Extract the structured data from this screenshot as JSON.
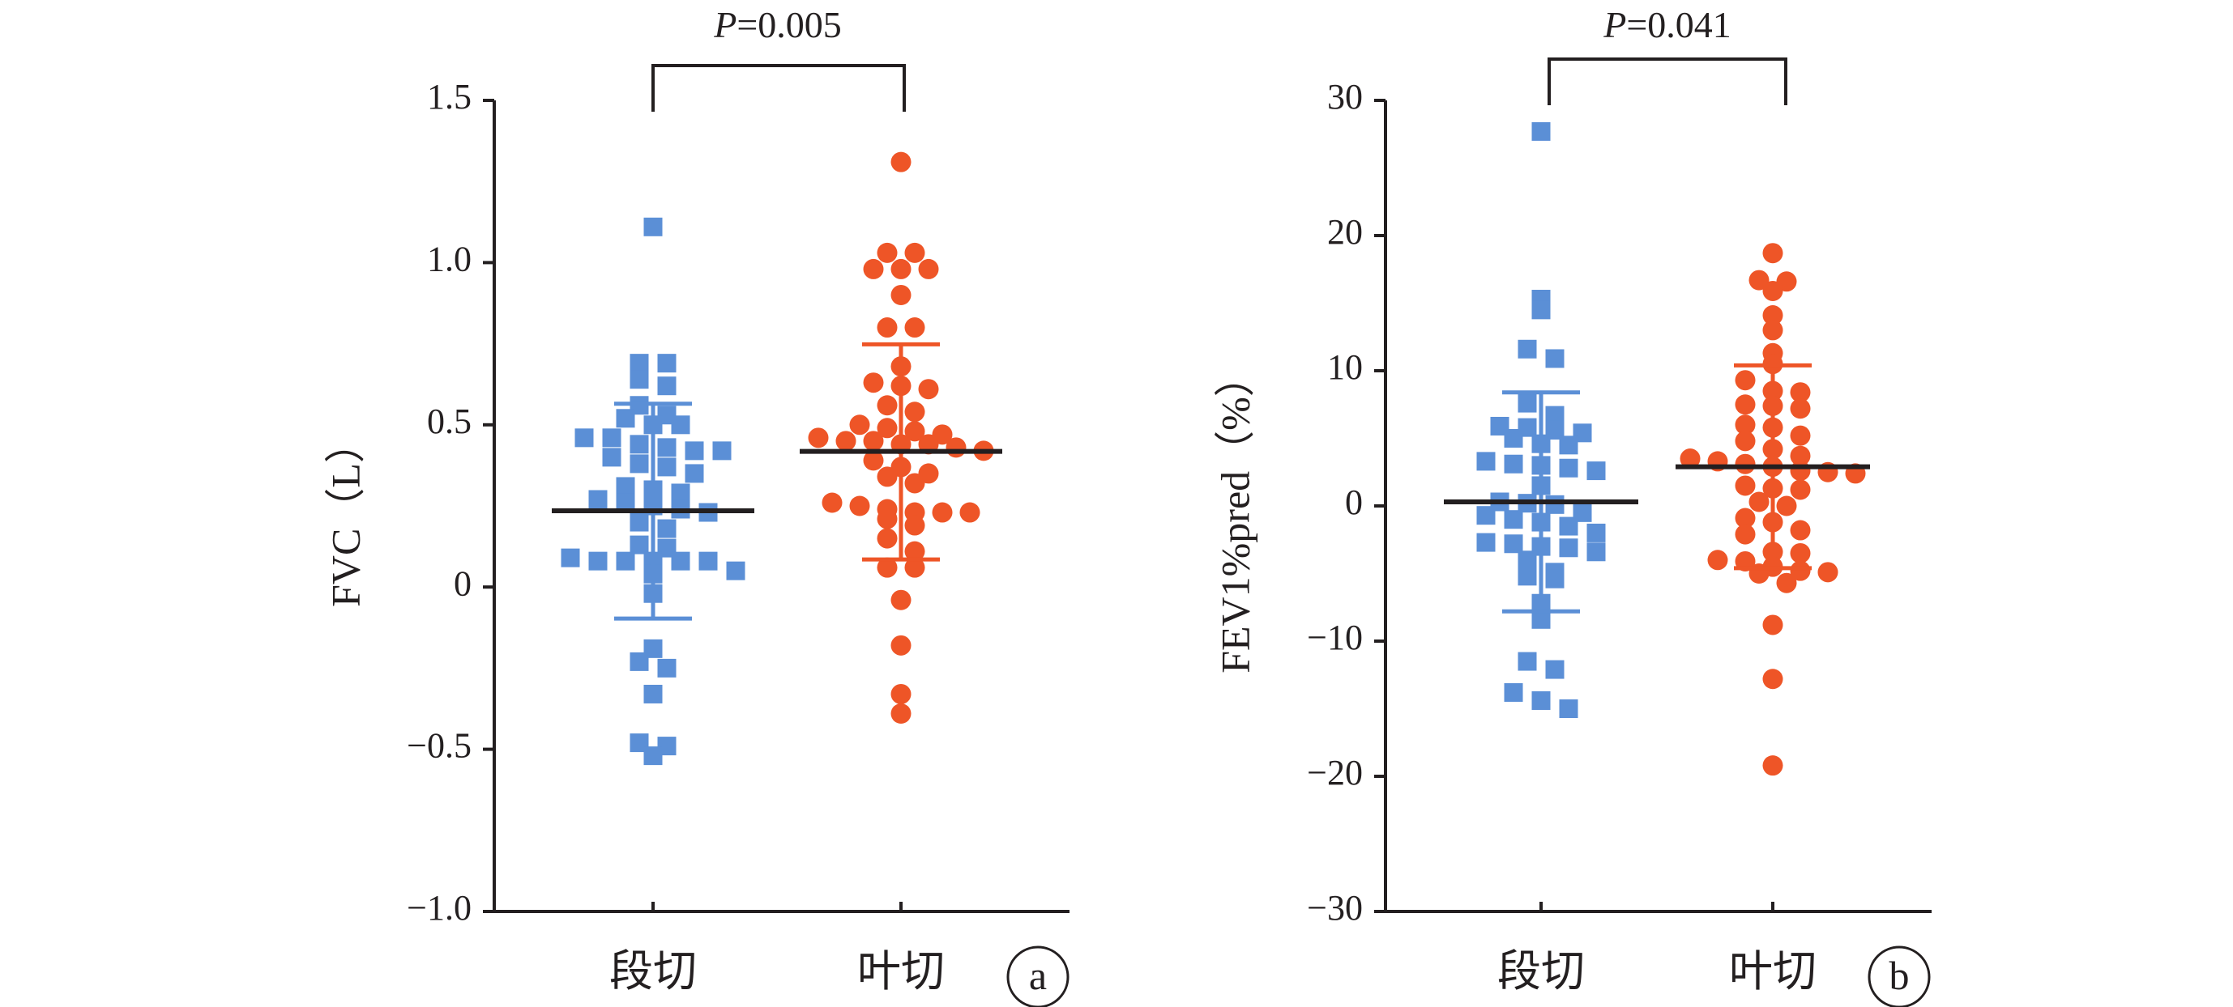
{
  "chart_data": [
    {
      "panel_label": "a",
      "type": "scatter",
      "ylabel": "FVC（L）",
      "ylim": [
        -1.0,
        1.5
      ],
      "yticks": [
        {
          "value": 1.5,
          "label": "1.5"
        },
        {
          "value": 1.0,
          "label": "1.0"
        },
        {
          "value": 0.5,
          "label": "0.5"
        },
        {
          "value": 0,
          "label": "0"
        },
        {
          "value": -0.5,
          "label": "−0.5"
        },
        {
          "value": -1.0,
          "label": "−1.0"
        }
      ],
      "categories": [
        "段切",
        "叶切"
      ],
      "p_label": "P",
      "p_value_text": "=0.005",
      "series": [
        {
          "category": "段切",
          "marker": "square",
          "color": "#5b8fd6",
          "mean": 0.235,
          "sd_upper": 0.565,
          "sd_lower": -0.097,
          "values": [
            1.11,
            0.69,
            0.69,
            0.64,
            0.62,
            0.56,
            0.53,
            0.52,
            0.5,
            0.5,
            0.46,
            0.46,
            0.44,
            0.43,
            0.42,
            0.42,
            0.4,
            0.38,
            0.37,
            0.35,
            0.31,
            0.3,
            0.29,
            0.27,
            0.26,
            0.25,
            0.24,
            0.23,
            0.2,
            0.18,
            0.13,
            0.12,
            0.09,
            0.08,
            0.08,
            0.08,
            0.08,
            0.08,
            0.05,
            0.04,
            -0.02,
            -0.19,
            -0.23,
            -0.25,
            -0.33,
            -0.48,
            -0.49,
            -0.52
          ]
        },
        {
          "category": "叶切",
          "marker": "circle",
          "color": "#ee5527",
          "mean": 0.418,
          "sd_upper": 0.748,
          "sd_lower": 0.085,
          "values": [
            1.31,
            1.03,
            1.03,
            0.98,
            0.98,
            0.98,
            0.9,
            0.8,
            0.8,
            0.68,
            0.63,
            0.62,
            0.61,
            0.56,
            0.54,
            0.5,
            0.49,
            0.48,
            0.47,
            0.46,
            0.45,
            0.45,
            0.44,
            0.44,
            0.43,
            0.42,
            0.39,
            0.37,
            0.35,
            0.34,
            0.32,
            0.26,
            0.25,
            0.24,
            0.23,
            0.23,
            0.23,
            0.21,
            0.19,
            0.15,
            0.11,
            0.06,
            0.06,
            -0.04,
            -0.18,
            -0.33,
            -0.39
          ]
        }
      ]
    },
    {
      "panel_label": "b",
      "type": "scatter",
      "ylabel": "FEV1%pred（%）",
      "ylim": [
        -30,
        30
      ],
      "yticks": [
        {
          "value": 30,
          "label": "30"
        },
        {
          "value": 20,
          "label": "20"
        },
        {
          "value": 10,
          "label": "10"
        },
        {
          "value": 0,
          "label": "0"
        },
        {
          "value": -10,
          "label": "−10"
        },
        {
          "value": -20,
          "label": "−20"
        },
        {
          "value": -30,
          "label": "−30"
        }
      ],
      "categories": [
        "段切",
        "叶切"
      ],
      "p_label": "P",
      "p_value_text": "=0.041",
      "series": [
        {
          "category": "段切",
          "marker": "square",
          "color": "#5b8fd6",
          "mean": 0.3,
          "sd_upper": 8.4,
          "sd_lower": -7.8,
          "values": [
            27.7,
            15.3,
            14.5,
            11.6,
            10.9,
            7.6,
            6.7,
            5.9,
            5.8,
            5.6,
            5.4,
            5.0,
            4.6,
            4.5,
            3.3,
            3.1,
            3.0,
            2.8,
            2.6,
            1.5,
            0.3,
            0.2,
            0.1,
            -0.5,
            -0.7,
            -1.0,
            -1.2,
            -1.5,
            -2.0,
            -2.7,
            -2.8,
            -3.0,
            -3.1,
            -3.4,
            -4.0,
            -4.9,
            -5.2,
            -5.4,
            -7.2,
            -8.4,
            -11.5,
            -12.1,
            -13.8,
            -14.4,
            -15.0
          ]
        },
        {
          "category": "叶切",
          "marker": "circle",
          "color": "#ee5527",
          "mean": 2.9,
          "sd_upper": 10.4,
          "sd_lower": -4.6,
          "values": [
            18.7,
            16.7,
            16.6,
            15.9,
            14.1,
            13.0,
            11.3,
            10.5,
            9.3,
            8.5,
            8.4,
            7.5,
            7.4,
            7.2,
            6.0,
            5.8,
            5.2,
            4.8,
            4.2,
            3.7,
            3.5,
            3.3,
            3.1,
            2.9,
            2.6,
            2.5,
            2.4,
            1.5,
            1.3,
            1.2,
            0.3,
            0.0,
            -0.9,
            -1.2,
            -1.8,
            -2.1,
            -3.4,
            -3.5,
            -4.0,
            -4.1,
            -4.5,
            -4.8,
            -4.9,
            -5.0,
            -5.7,
            -8.8,
            -12.8,
            -19.2
          ]
        }
      ]
    }
  ]
}
